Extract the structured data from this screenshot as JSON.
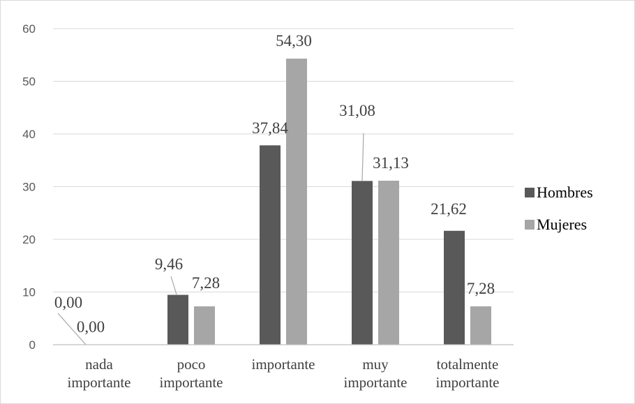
{
  "chart_data": {
    "type": "bar",
    "categories": [
      [
        "nada",
        "importante"
      ],
      [
        "poco",
        "importante"
      ],
      [
        "importante"
      ],
      [
        "muy",
        "importante"
      ],
      [
        "totalmente",
        "importante"
      ]
    ],
    "series": [
      {
        "name": "Hombres",
        "color": "#595959",
        "values": [
          0.0,
          9.46,
          37.84,
          31.08,
          21.62
        ],
        "labels": [
          "0,00",
          "9,46",
          "37,84",
          "31,08",
          "21,62"
        ]
      },
      {
        "name": "Mujeres",
        "color": "#a6a6a6",
        "values": [
          0.0,
          7.28,
          54.3,
          31.13,
          7.28
        ],
        "labels": [
          "0,00",
          "7,28",
          "54,30",
          "31,13",
          "7,28"
        ]
      }
    ],
    "yticks": [
      "0",
      "10",
      "20",
      "30",
      "40",
      "50",
      "60"
    ],
    "ylim": [
      0,
      60
    ],
    "grid": true,
    "legend_position": "right"
  }
}
